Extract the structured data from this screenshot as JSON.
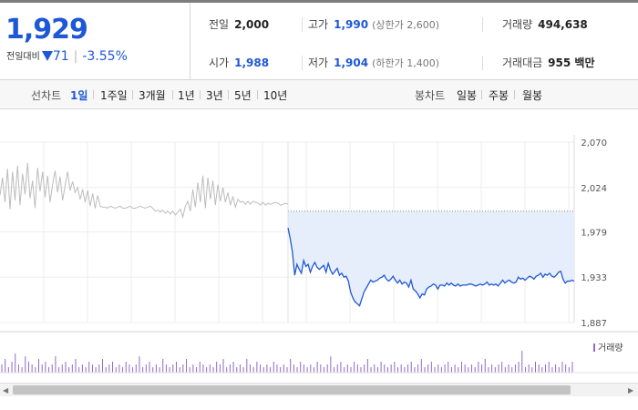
{
  "summary": {
    "price": "1,929",
    "change_label": "전일대비",
    "change_value": "71",
    "change_pct": "-3.55%"
  },
  "stats": {
    "prev_close": {
      "label": "전일",
      "value": "2,000"
    },
    "high": {
      "label": "고가",
      "value": "1,990",
      "limit": "(상한가 2,600)"
    },
    "volume": {
      "label": "거래량",
      "value": "494,638"
    },
    "open": {
      "label": "시가",
      "value": "1,988"
    },
    "low": {
      "label": "저가",
      "value": "1,904",
      "limit": "(하한가 1,400)"
    },
    "amount": {
      "label": "거래대금",
      "value": "955 백만"
    }
  },
  "period": {
    "line_label": "선차트",
    "line_options": [
      "1일",
      "1주일",
      "3개월",
      "1년",
      "3년",
      "5년",
      "10년"
    ],
    "active": "1일",
    "candle_label": "봉차트",
    "candle_options": [
      "일봉",
      "주봉",
      "월봉"
    ]
  },
  "volume_legend": "거래량",
  "colors": {
    "accent": "#1e58d6",
    "prev_line": "#bdbdbd",
    "area_fill": "#e6eefb",
    "volume_bar": "#8e6bc7"
  },
  "chart_data": {
    "type": "line",
    "y_ticks": [
      "2,070",
      "2,024",
      "1,979",
      "1,933",
      "1,887"
    ],
    "ylim": [
      1887,
      2070
    ],
    "reference_price": 2000,
    "grid": true,
    "series": [
      {
        "values": [
          2016,
          2034,
          2009,
          2043,
          2002,
          2040,
          2011,
          2046,
          2006,
          2038,
          2017,
          2049,
          2013,
          2031,
          2003,
          2044,
          2020,
          2040,
          2014,
          2036,
          2009,
          2027,
          2041,
          2019,
          2035,
          2011,
          2026,
          2040,
          2021,
          2030,
          2019,
          2024,
          2012,
          2022,
          2009,
          2021,
          2005,
          2018,
          2003,
          2016,
          2005,
          2004,
          2004,
          2003,
          2005,
          2004,
          2003,
          2004,
          2005,
          2003,
          2003,
          2004,
          2005,
          2003,
          2003,
          2004,
          2005,
          2004,
          2003,
          2004,
          2005,
          2003,
          2000,
          2001,
          1999,
          2001,
          1998,
          2000,
          1997,
          2000,
          1996,
          1999,
          2002,
          1994,
          2005,
          2010,
          2000,
          2022,
          2004,
          2029,
          2009,
          2036,
          2003,
          2034,
          2012,
          2031,
          2006,
          2027,
          2010,
          2024,
          2009,
          2019,
          2006,
          2015,
          2004,
          2012,
          2009,
          2010,
          2007,
          2010,
          2007,
          2010,
          2009,
          2008,
          2006,
          2009,
          2006,
          2008,
          2007,
          2008,
          2009,
          2008,
          2006,
          2007,
          2008,
          2007
        ]
      },
      {
        "values": [
          1983,
          1972,
          1958,
          1935,
          1946,
          1941,
          1937,
          1950,
          1944,
          1946,
          1938,
          1944,
          1948,
          1943,
          1941,
          1943,
          1945,
          1938,
          1947,
          1940,
          1936,
          1939,
          1942,
          1935,
          1937,
          1933,
          1934,
          1929,
          1918,
          1912,
          1908,
          1906,
          1904,
          1911,
          1918,
          1922,
          1926,
          1930,
          1928,
          1929,
          1930,
          1932,
          1933,
          1935,
          1931,
          1929,
          1931,
          1934,
          1930,
          1927,
          1930,
          1926,
          1928,
          1927,
          1923,
          1930,
          1921,
          1919,
          1916,
          1912,
          1916,
          1915,
          1921,
          1923,
          1924,
          1926,
          1925,
          1921,
          1925,
          1925,
          1924,
          1927,
          1925,
          1927,
          1925,
          1924,
          1926,
          1924,
          1925,
          1925,
          1925,
          1926,
          1926,
          1925,
          1924,
          1925,
          1926,
          1925,
          1926,
          1928,
          1925,
          1926,
          1925,
          1926,
          1924,
          1927,
          1930,
          1927,
          1929,
          1930,
          1928,
          1927,
          1928,
          1933,
          1931,
          1932,
          1930,
          1932,
          1934,
          1933,
          1931,
          1934,
          1935,
          1937,
          1933,
          1936,
          1935,
          1937,
          1934,
          1933,
          1935,
          1938,
          1939,
          1931,
          1927,
          1929,
          1929,
          1930,
          1929
        ]
      }
    ],
    "volume": [
      3,
      5,
      2,
      4,
      7,
      3,
      2,
      6,
      4,
      3,
      2,
      5,
      3,
      4,
      2,
      3,
      6,
      2,
      3,
      4,
      2,
      3,
      5,
      2,
      3,
      2,
      4,
      3,
      2,
      3,
      5,
      2,
      3,
      4,
      2,
      3,
      2,
      4,
      3,
      2,
      3,
      6,
      2,
      3,
      4,
      2,
      3,
      2,
      5,
      3,
      2,
      3,
      4,
      2,
      3,
      5,
      2,
      3,
      2,
      4,
      3,
      2,
      3,
      2,
      4,
      3,
      5,
      2,
      3,
      4,
      2,
      3,
      2,
      5,
      3,
      2,
      4,
      3,
      2,
      3,
      2,
      4,
      3,
      2,
      3,
      2,
      5,
      3,
      2,
      4,
      3,
      2,
      3,
      2,
      4,
      3,
      2,
      3,
      6,
      2,
      3,
      4,
      2,
      3,
      2,
      4,
      3,
      2,
      3,
      5,
      2,
      3,
      2,
      4,
      3,
      2,
      3,
      4,
      2,
      3,
      2,
      3,
      4,
      2,
      3,
      5,
      2,
      3,
      4,
      2,
      3,
      2,
      3,
      4,
      2,
      3,
      2,
      4,
      3,
      2,
      3,
      2,
      4,
      3,
      5,
      2,
      3,
      2,
      3,
      4,
      2,
      3,
      2,
      3,
      4,
      8,
      2,
      3,
      2,
      4,
      3,
      2,
      3,
      4,
      2,
      3,
      2,
      4,
      3,
      2,
      4
    ]
  }
}
